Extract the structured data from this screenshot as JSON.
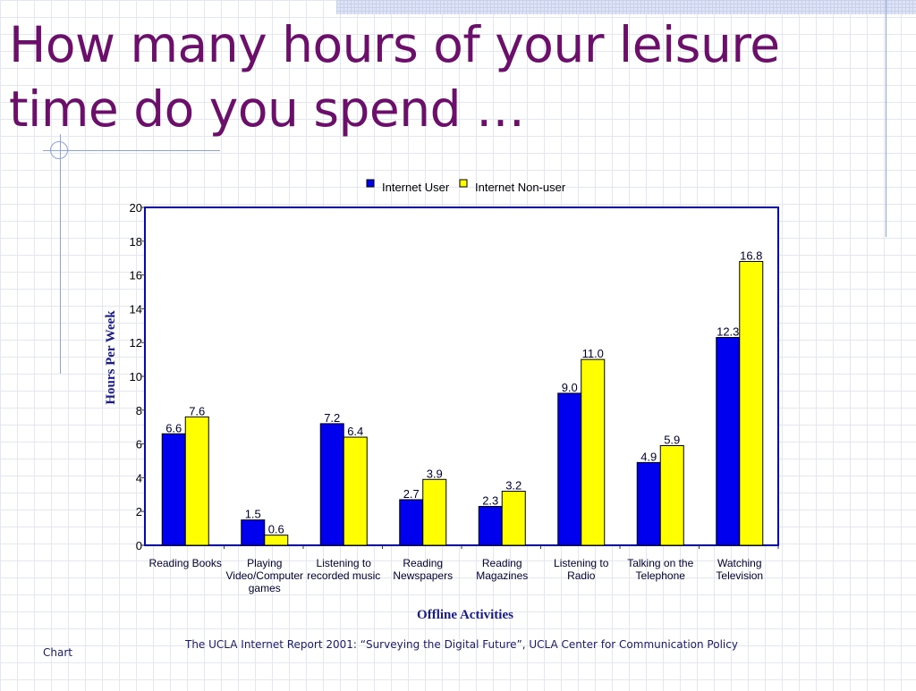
{
  "slide": {
    "title_line1": "How many hours of your leisure",
    "title_line2": "time do you spend …",
    "source": "The UCLA Internet Report 2001: “Surveying the Digital Future”, UCLA Center for Communication Policy",
    "footer_label": "Chart"
  },
  "colors": {
    "title": "#6b0f6b",
    "series_user": "#0000ee",
    "series_nonuser": "#ffff00",
    "axis": "#0000ee"
  },
  "chart_data": {
    "type": "bar",
    "xlabel": "Offline Activities",
    "ylabel": "Hours Per Week",
    "ylim": [
      0,
      20
    ],
    "yticks": [
      "0",
      "2",
      "4",
      "6",
      "8",
      "10",
      "12",
      "14",
      "16",
      "18",
      "20"
    ],
    "legend_position": "top-center",
    "grid": false,
    "categories": [
      [
        "Reading Books"
      ],
      [
        "Playing",
        "Video/Computer",
        "games"
      ],
      [
        "Listening to",
        "recorded music"
      ],
      [
        "Reading",
        "Newspapers"
      ],
      [
        "Reading",
        "Magazines"
      ],
      [
        "Listening to",
        "Radio"
      ],
      [
        "Talking on the",
        "Telephone"
      ],
      [
        "Watching",
        "Television"
      ]
    ],
    "series": [
      {
        "name": "Internet User",
        "values": [
          6.6,
          1.5,
          7.2,
          2.7,
          2.3,
          9.0,
          4.9,
          12.3
        ],
        "labels": [
          "6.6",
          "1.5",
          "7.2",
          "2.7",
          "2.3",
          "9.0",
          "4.9",
          "12.3"
        ]
      },
      {
        "name": "Internet Non-user",
        "values": [
          7.6,
          0.6,
          6.4,
          3.9,
          3.2,
          11.0,
          5.9,
          16.8
        ],
        "labels": [
          "7.6",
          "0.6",
          "6.4",
          "3.9",
          "3.2",
          "11.0",
          "5.9",
          "16.8"
        ]
      }
    ]
  }
}
